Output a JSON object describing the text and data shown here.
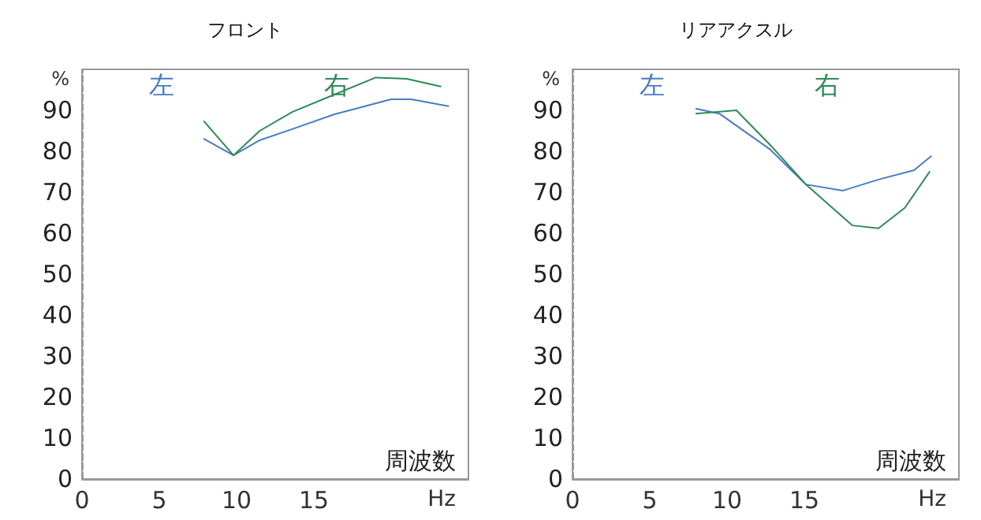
{
  "chart_data": [
    {
      "type": "line",
      "title": "フロント",
      "xlabel": "周波数",
      "ylabel": "%",
      "annotations": [
        "Hz"
      ],
      "xlim": [
        0,
        25
      ],
      "xticks": [
        0,
        5,
        10,
        15
      ],
      "ylim": [
        0,
        100
      ],
      "yticks": [
        0,
        10,
        20,
        30,
        40,
        50,
        60,
        70,
        80,
        90
      ],
      "grid": false,
      "legend": "top",
      "marker": "none",
      "line_style": "solid",
      "series": [
        {
          "name": "左",
          "color": "#4a7cc4",
          "x": [
            7.9,
            9.8,
            11.5,
            13.6,
            16.3,
            20,
            21.3,
            23.7
          ],
          "values": [
            83,
            79,
            82.7,
            85.4,
            89,
            92.7,
            92.7,
            91
          ]
        },
        {
          "name": "右",
          "color": "#2e8b57",
          "x": [
            7.9,
            9.8,
            11.5,
            13.6,
            16.3,
            19,
            21,
            23.2
          ],
          "values": [
            87.3,
            79,
            85,
            89.6,
            93.8,
            98,
            97.7,
            95.8
          ]
        }
      ]
    },
    {
      "type": "line",
      "title": "リアアクスル",
      "xlabel": "周波数",
      "ylabel": "%",
      "annotations": [
        "Hz"
      ],
      "xlim": [
        0,
        25
      ],
      "xticks": [
        0,
        5,
        10,
        15
      ],
      "ylim": [
        0,
        100
      ],
      "yticks": [
        0,
        10,
        20,
        30,
        40,
        50,
        60,
        70,
        80,
        90
      ],
      "grid": false,
      "legend": "top",
      "marker": "none",
      "line_style": "solid",
      "series": [
        {
          "name": "左",
          "color": "#4a7cc4",
          "x": [
            8.0,
            9.5,
            12.8,
            15.1,
            17.5,
            19.8,
            22.1,
            23.2
          ],
          "values": [
            90.4,
            89.2,
            80.4,
            71.9,
            70.4,
            73.1,
            75.4,
            78.8
          ]
        },
        {
          "name": "右",
          "color": "#2e8b57",
          "x": [
            8.0,
            10.6,
            12.8,
            15.1,
            18.1,
            19.8,
            21.5,
            23.1
          ],
          "values": [
            89.2,
            90,
            81.5,
            71.9,
            61.9,
            61.2,
            66.2,
            75
          ]
        }
      ]
    }
  ]
}
